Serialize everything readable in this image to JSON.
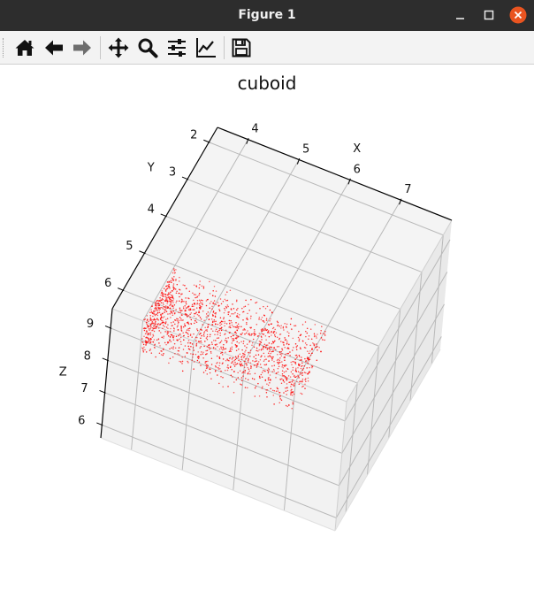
{
  "window": {
    "title": "Figure 1"
  },
  "toolbar": {
    "tools": [
      "home-icon",
      "back-arrow-icon",
      "forward-arrow-icon",
      "pan-icon",
      "zoom-icon",
      "subplots-icon",
      "edit-axes-icon",
      "save-icon"
    ]
  },
  "chart_data": {
    "type": "scatter",
    "title": "cuboid",
    "axes": {
      "x": {
        "label": "X",
        "ticks": [
          "4",
          "5",
          "6",
          "7"
        ]
      },
      "y": {
        "label": "Y",
        "ticks": [
          "2",
          "3",
          "4",
          "5",
          "6"
        ]
      },
      "z": {
        "label": "Z",
        "ticks": [
          "6",
          "7",
          "8",
          "9"
        ]
      }
    },
    "xlim": [
      3.4,
      8.0
    ],
    "ylim": [
      1.6,
      6.5
    ],
    "zlim": [
      5.6,
      9.6
    ],
    "points": {
      "color": "#ff0000",
      "shape": "cuboid",
      "x_range": [
        4.0,
        7.0
      ],
      "y_range": [
        5.0,
        6.5
      ],
      "z_range": [
        8.5,
        9.6
      ],
      "count": 1700
    },
    "grid": true,
    "panes_color": "#f2f2f2"
  }
}
